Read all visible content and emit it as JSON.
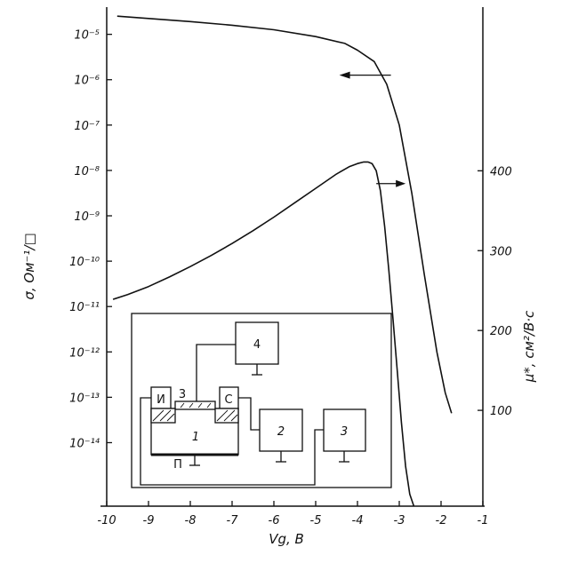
{
  "chart_data": {
    "type": "line",
    "title": "",
    "xlabel": "Vg, В",
    "ylabel_left": "σ, Ом⁻¹/□",
    "ylabel_right": "μ*, см²/В·с",
    "x_ticks": [
      "-10",
      "-9",
      "-8",
      "-7",
      "-6",
      "-5",
      "-4",
      "-3",
      "-2",
      "-1"
    ],
    "x_tick_values": [
      -10,
      -9,
      -8,
      -7,
      -6,
      -5,
      -4,
      -3,
      -2,
      -1
    ],
    "xlim": [
      -10,
      -1
    ],
    "y_left_scale": "log",
    "y_left_tick_labels": [
      "10⁻⁵",
      "10⁻⁶",
      "10⁻⁷",
      "10⁻⁸",
      "10⁻⁹",
      "10⁻¹⁰",
      "10⁻¹¹",
      "10⁻¹²",
      "10⁻¹³",
      "10⁻¹⁴"
    ],
    "y_left_tick_exponents": [
      -5,
      -6,
      -7,
      -8,
      -9,
      -10,
      -11,
      -12,
      -13,
      -14
    ],
    "y_left_lim_exp": [
      -15.4,
      -4.4
    ],
    "y_right_ticks": [
      "100",
      "200",
      "300",
      "400"
    ],
    "y_right_tick_values": [
      100,
      200,
      300,
      400
    ],
    "y_right_lim": [
      -20,
      605
    ],
    "series": [
      {
        "axis": "left",
        "arrow": "left",
        "x": [
          -9.75,
          -9.0,
          -8.0,
          -7.0,
          -6.0,
          -5.0,
          -4.3,
          -4.0,
          -3.6,
          -3.3,
          -3.0,
          -2.7,
          -2.4,
          -2.1,
          -1.9,
          -1.75
        ],
        "log10_y": [
          -4.6,
          -4.65,
          -4.72,
          -4.8,
          -4.9,
          -5.05,
          -5.2,
          -5.35,
          -5.6,
          -6.1,
          -7.0,
          -8.5,
          -10.3,
          -12.0,
          -12.9,
          -13.35
        ]
      },
      {
        "axis": "right",
        "arrow": "right",
        "x": [
          -9.85,
          -9.5,
          -9.0,
          -8.5,
          -8.0,
          -7.5,
          -7.0,
          -6.5,
          -6.0,
          -5.5,
          -5.0,
          -4.5,
          -4.2,
          -4.0,
          -3.85,
          -3.75,
          -3.65,
          -3.55,
          -3.45,
          -3.35,
          -3.25,
          -3.15,
          -3.05,
          -2.95,
          -2.85,
          -2.75,
          -2.65
        ],
        "y": [
          239,
          245,
          255,
          267,
          280,
          294,
          309,
          325,
          342,
          360,
          378,
          396,
          405,
          409,
          411,
          411,
          409,
          400,
          375,
          330,
          275,
          215,
          150,
          85,
          30,
          -5,
          -20
        ]
      }
    ],
    "inset_labels": {
      "block4": "4",
      "block2": "2",
      "block3": "3",
      "gate": "3",
      "source": "И",
      "drain": "С",
      "substrate": "1",
      "bottom": "П"
    }
  }
}
